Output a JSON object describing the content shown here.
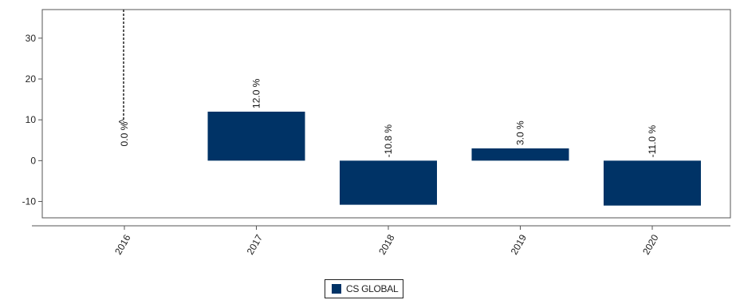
{
  "chart_data": {
    "type": "bar",
    "categories": [
      "2016",
      "2017",
      "2018",
      "2019",
      "2020"
    ],
    "series": [
      {
        "name": "CS GLOBAL",
        "values": [
          0.0,
          12.0,
          -10.8,
          3.0,
          -11.0
        ]
      }
    ],
    "data_labels": [
      "0.0 %",
      "12.0 %",
      "-10.8 %",
      "3.0 %",
      "-11.0 %"
    ],
    "ylim": [
      -14,
      37
    ],
    "yticks": [
      -10,
      0,
      10,
      20,
      30
    ],
    "ytick_labels": [
      "-10",
      "0",
      "10",
      "20",
      "30"
    ],
    "grid": false,
    "legend_position": "bottom-center",
    "colors": {
      "bar": "#003366",
      "axis": "#555555",
      "text": "#222222"
    }
  }
}
